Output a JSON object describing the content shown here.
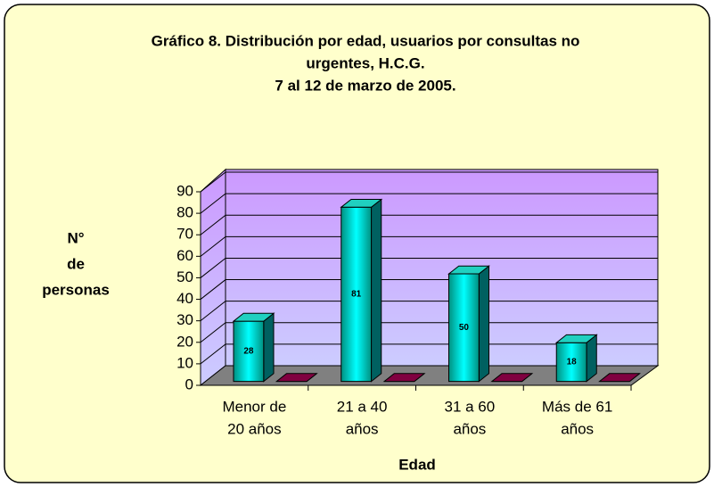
{
  "chart_data": {
    "type": "bar3d",
    "title": [
      "Gráfico 8. Distribución por edad, usuarios por consultas no",
      "urgentes, H.C.G.",
      "7 al 12 de marzo de 2005."
    ],
    "ylabel": [
      "N°",
      "de",
      "personas"
    ],
    "xlabel": "Edad",
    "categories": [
      [
        "Menor de",
        "20 años"
      ],
      [
        "21 a 40",
        "años"
      ],
      [
        "31 a 60",
        "años"
      ],
      [
        "Más de 61",
        "años"
      ]
    ],
    "series": [
      {
        "color": "#00a0a0",
        "values": [
          28,
          81,
          50,
          18
        ]
      },
      {
        "color": "#800040",
        "values": [
          0,
          0,
          0,
          0
        ]
      }
    ],
    "ylim": [
      0,
      90
    ],
    "yticks": [
      0,
      10,
      20,
      30,
      40,
      50,
      60,
      70,
      80,
      90
    ],
    "grid": true
  }
}
